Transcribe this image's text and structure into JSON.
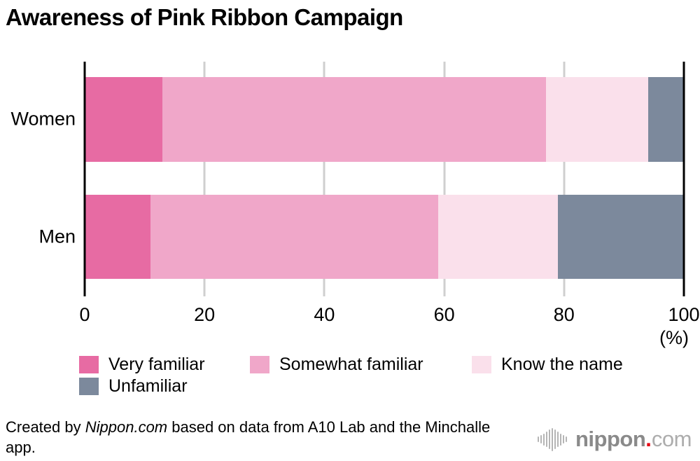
{
  "title": "Awareness of Pink Ribbon Campaign",
  "chart_data": {
    "type": "bar",
    "orientation": "horizontal",
    "stacked": true,
    "title": "Awareness of Pink Ribbon Campaign",
    "categories": [
      "Women",
      "Men"
    ],
    "series": [
      {
        "name": "Very familiar",
        "color": "#e76ba3",
        "values": [
          13,
          11
        ]
      },
      {
        "name": "Somewhat familiar",
        "color": "#f0a7c9",
        "values": [
          64,
          48
        ]
      },
      {
        "name": "Know the name",
        "color": "#fae0eb",
        "values": [
          17,
          20
        ]
      },
      {
        "name": "Unfamiliar",
        "color": "#7c899c",
        "values": [
          6,
          21
        ]
      }
    ],
    "x_axis": {
      "range": [
        0,
        100
      ],
      "ticks": [
        0,
        20,
        40,
        60,
        80,
        100
      ],
      "unit_label": "(%)"
    },
    "grid": true,
    "grid_color": "#cfcfcf",
    "axis_color": "#000000",
    "legend_position": "bottom"
  },
  "footer": {
    "credit_prefix": "Created by ",
    "credit_source": "Nippon.com",
    "credit_suffix": " based on data from A10 Lab and the Minchalle app."
  },
  "logo": {
    "soundwave_icon": "soundwave-bars-icon",
    "name_bold": "nippon",
    "dot": ".",
    "name_light": "com",
    "dot_color": "#e60012"
  }
}
